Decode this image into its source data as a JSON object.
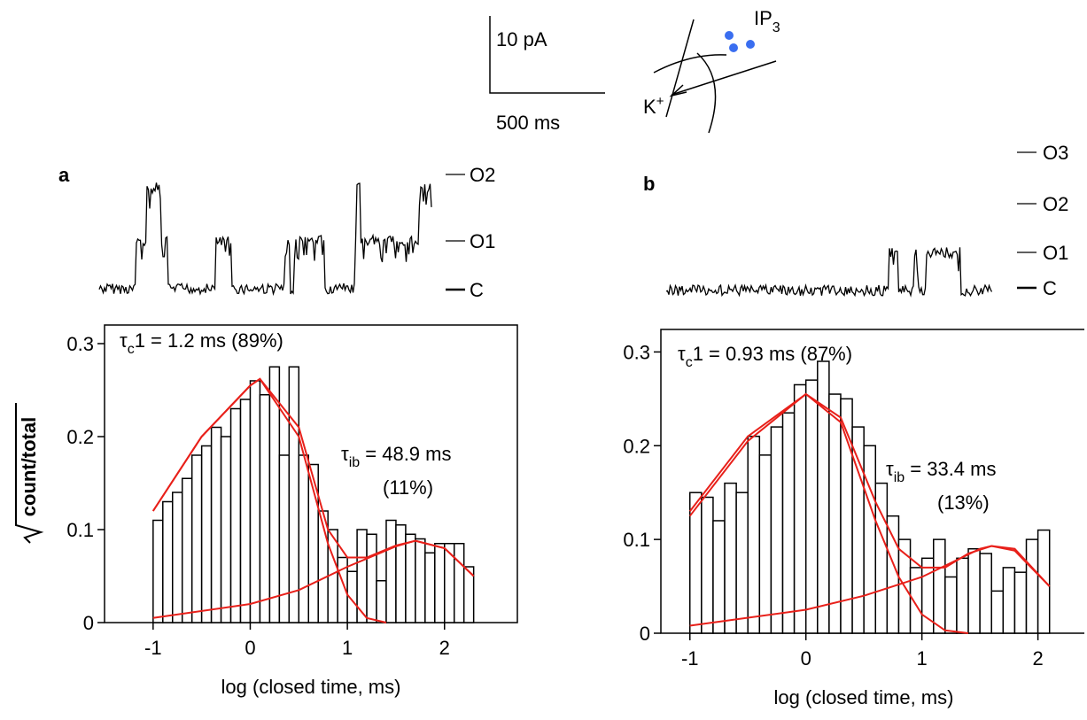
{
  "chart_data": [
    {
      "type": "histogram",
      "panel": "a",
      "bins": [
        -1,
        -0.9,
        -0.8,
        -0.7,
        -0.6,
        -0.5,
        -0.4,
        -0.3,
        -0.2,
        -0.1,
        0,
        0.1,
        0.2,
        0.3,
        0.4,
        0.5,
        0.6,
        0.7,
        0.8,
        0.9,
        1,
        1.1,
        1.2,
        1.3,
        1.4,
        1.5,
        1.6,
        1.7,
        1.8,
        1.9,
        2,
        2.1,
        2.2,
        2.3
      ],
      "values": [
        0.11,
        0.13,
        0.14,
        0.155,
        0.18,
        0.19,
        0.21,
        0.2,
        0.23,
        0.24,
        0.26,
        0.245,
        0.275,
        0.18,
        0.275,
        0.18,
        0.17,
        0.12,
        0.1,
        0.07,
        0.055,
        0.1,
        0.095,
        0.045,
        0.11,
        0.105,
        0.095,
        0.09,
        0.075,
        0.085,
        0.085,
        0.085,
        0.06
      ],
      "bar_color": "#ffffff",
      "edge_color": "#000000",
      "xlim": [
        -1.5,
        2.75
      ],
      "ylim": [
        0,
        0.32
      ],
      "xticks": [
        -1,
        0,
        1,
        2
      ],
      "yticks": [
        0,
        0.1,
        0.2,
        0.3
      ],
      "xlabel": "log (closed time,  ms)",
      "ylabel": "count/total",
      "fits": [
        {
          "color": "#e8201a",
          "x": [
            -1,
            -0.5,
            0,
            0.1,
            0.5,
            0.8,
            1,
            1.2,
            1.5,
            1.7,
            2,
            2.3
          ],
          "values": [
            0.12,
            0.2,
            0.255,
            0.262,
            0.21,
            0.1,
            0.07,
            0.07,
            0.083,
            0.088,
            0.08,
            0.05
          ]
        },
        {
          "color": "#e8201a",
          "x": [
            -1,
            -0.5,
            0,
            0.1,
            0.5,
            0.8,
            1,
            1.2,
            1.4
          ],
          "values": [
            0.12,
            0.2,
            0.255,
            0.262,
            0.2,
            0.085,
            0.03,
            0.005,
            0
          ]
        },
        {
          "color": "#e8201a",
          "x": [
            -1,
            0,
            0.5,
            1,
            1.5,
            1.7,
            2,
            2.3
          ],
          "values": [
            0.005,
            0.02,
            0.035,
            0.06,
            0.082,
            0.088,
            0.08,
            0.05
          ]
        }
      ],
      "annotations": [
        {
          "symbol": "τ",
          "subscript": "c",
          "text": "1 = 1.2 ms  (89%)"
        },
        {
          "symbol": "τ",
          "subscript": "ib",
          "text": " = 48.9 ms",
          "line2": "(11%)"
        }
      ],
      "trace_levels": [
        "O2",
        "O1",
        "C"
      ]
    },
    {
      "type": "histogram",
      "panel": "b",
      "bins": [
        -1,
        -0.9,
        -0.8,
        -0.7,
        -0.6,
        -0.5,
        -0.4,
        -0.3,
        -0.2,
        -0.1,
        0,
        0.1,
        0.2,
        0.3,
        0.4,
        0.5,
        0.6,
        0.7,
        0.8,
        0.9,
        1,
        1.1,
        1.2,
        1.3,
        1.4,
        1.5,
        1.6,
        1.7,
        1.8,
        1.9,
        2,
        2.1
      ],
      "values": [
        0.15,
        0.145,
        0.12,
        0.16,
        0.15,
        0.21,
        0.19,
        0.22,
        0.235,
        0.265,
        0.27,
        0.29,
        0.255,
        0.25,
        0.22,
        0.2,
        0.16,
        0.125,
        0.1,
        0.07,
        0.08,
        0.1,
        0.06,
        0.08,
        0.09,
        0.085,
        0.045,
        0.07,
        0.065,
        0.1,
        0.11
      ],
      "bar_color": "#ffffff",
      "edge_color": "#000000",
      "xlim": [
        -1.25,
        2.4
      ],
      "ylim": [
        0,
        0.324
      ],
      "xticks": [
        -1,
        0,
        1,
        2
      ],
      "yticks": [
        0,
        0.1,
        0.2,
        0.3
      ],
      "xlabel": "log (closed time,  ms)",
      "fits": [
        {
          "color": "#e8201a",
          "x": [
            -1,
            -0.5,
            0,
            0.3,
            0.6,
            0.8,
            1,
            1.2,
            1.4,
            1.6,
            1.8,
            2.1
          ],
          "values": [
            0.13,
            0.21,
            0.255,
            0.23,
            0.14,
            0.09,
            0.07,
            0.07,
            0.085,
            0.093,
            0.09,
            0.05
          ]
        },
        {
          "color": "#e8201a",
          "x": [
            -1,
            -0.5,
            0,
            0.3,
            0.6,
            0.8,
            1,
            1.2,
            1.4
          ],
          "values": [
            0.125,
            0.205,
            0.255,
            0.225,
            0.12,
            0.06,
            0.02,
            0.003,
            0
          ]
        },
        {
          "color": "#e8201a",
          "x": [
            -1,
            0,
            0.5,
            1,
            1.5,
            1.6,
            1.8,
            2.1
          ],
          "values": [
            0.008,
            0.025,
            0.04,
            0.06,
            0.09,
            0.093,
            0.088,
            0.05
          ]
        }
      ],
      "annotations": [
        {
          "symbol": "τ",
          "subscript": "c",
          "text": "1 = 0.93 ms  (87%)"
        },
        {
          "symbol": "τ",
          "subscript": "ib",
          "text": " = 33.4 ms",
          "line2": "(13%)"
        }
      ],
      "trace_levels": [
        "O3",
        "O2",
        "O1",
        "C"
      ]
    }
  ],
  "scale_bar": {
    "current": "10 pA",
    "time": "500 ms"
  },
  "schematic": {
    "ligand": "IP",
    "ligand_sub": "3",
    "ion": "K",
    "ion_sup": "+"
  }
}
